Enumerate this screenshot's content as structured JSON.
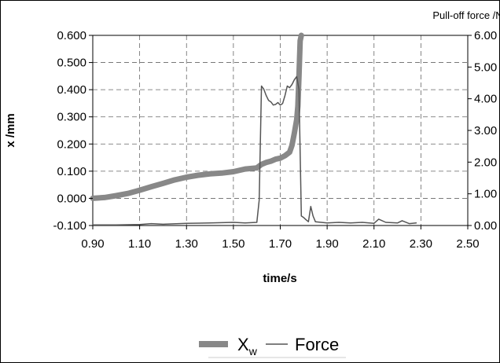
{
  "chart_data": {
    "type": "line",
    "xlabel": "time/s",
    "ylabel": "x /mm",
    "y2label": "Pull-off force /N",
    "xlim": [
      0.9,
      2.5
    ],
    "ylim": [
      -0.1,
      0.6
    ],
    "y2lim": [
      0,
      6
    ],
    "x_ticks": [
      "0.90",
      "1.10",
      "1.30",
      "1.50",
      "1.70",
      "1.90",
      "2.10",
      "2.30",
      "2.50"
    ],
    "y_ticks": [
      "-0.100",
      "0.000",
      "0.100",
      "0.200",
      "0.300",
      "0.400",
      "0.500",
      "0.600"
    ],
    "y2_ticks": [
      "0.00",
      "1.00",
      "2.00",
      "3.00",
      "4.00",
      "5.00",
      "6.00"
    ],
    "grid": true,
    "legend_position": "bottom",
    "legend": {
      "xw_main": "X",
      "xw_sub": "w",
      "force_label": "Force"
    },
    "series": [
      {
        "name": "Xw",
        "axis": "left",
        "color": "#888888",
        "x": [
          0.9,
          0.95,
          1.0,
          1.05,
          1.1,
          1.15,
          1.2,
          1.25,
          1.3,
          1.35,
          1.4,
          1.45,
          1.5,
          1.55,
          1.6,
          1.62,
          1.64,
          1.66,
          1.68,
          1.7,
          1.72,
          1.74,
          1.75,
          1.76,
          1.77,
          1.775,
          1.78,
          1.785,
          1.79
        ],
        "y": [
          0.0,
          0.003,
          0.01,
          0.018,
          0.03,
          0.043,
          0.055,
          0.068,
          0.078,
          0.085,
          0.09,
          0.093,
          0.098,
          0.108,
          0.112,
          0.125,
          0.132,
          0.137,
          0.144,
          0.148,
          0.157,
          0.17,
          0.195,
          0.24,
          0.29,
          0.34,
          0.45,
          0.58,
          0.6
        ]
      },
      {
        "name": "Force",
        "axis": "right",
        "color": "#555555",
        "x": [
          0.9,
          1.0,
          1.1,
          1.15,
          1.2,
          1.3,
          1.4,
          1.5,
          1.55,
          1.6,
          1.61,
          1.62,
          1.63,
          1.64,
          1.65,
          1.66,
          1.67,
          1.68,
          1.69,
          1.7,
          1.71,
          1.72,
          1.73,
          1.74,
          1.75,
          1.76,
          1.77,
          1.78,
          1.79,
          1.8,
          1.81,
          1.82,
          1.83,
          1.84,
          1.85,
          1.9,
          1.95,
          2.0,
          2.05,
          2.1,
          2.12,
          2.15,
          2.2,
          2.22,
          2.25,
          2.28
        ],
        "y": [
          0.02,
          0.02,
          0.03,
          0.06,
          0.04,
          0.07,
          0.08,
          0.1,
          0.08,
          0.1,
          0.8,
          4.4,
          4.3,
          4.1,
          3.95,
          3.9,
          3.8,
          3.82,
          3.88,
          3.8,
          3.85,
          4.1,
          4.4,
          4.35,
          4.45,
          4.6,
          4.7,
          4.3,
          0.3,
          0.25,
          0.18,
          0.12,
          0.6,
          0.3,
          0.12,
          0.08,
          0.1,
          0.08,
          0.1,
          0.07,
          0.2,
          0.1,
          0.08,
          0.15,
          0.06,
          0.08
        ]
      }
    ]
  }
}
